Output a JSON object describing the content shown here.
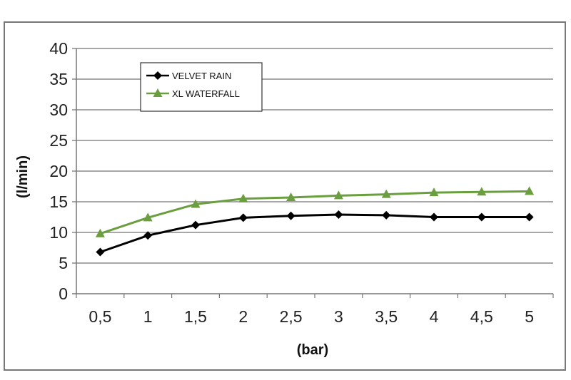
{
  "chart_data": {
    "type": "line",
    "title": "",
    "xlabel": "(bar)",
    "ylabel": "(l/min)",
    "categories": [
      "0,5",
      "1",
      "1,5",
      "2",
      "2,5",
      "3",
      "3,5",
      "4",
      "4,5",
      "5"
    ],
    "y_ticks": [
      "0",
      "5",
      "10",
      "15",
      "20",
      "25",
      "30",
      "35",
      "40"
    ],
    "ylim": [
      0,
      40
    ],
    "grid": "horizontal",
    "legend_position": "top-left",
    "series": [
      {
        "name": "VELVET RAIN",
        "color": "#000000",
        "marker": "diamond",
        "values": [
          6.8,
          9.5,
          11.2,
          12.4,
          12.7,
          12.9,
          12.8,
          12.5,
          12.5,
          12.5
        ]
      },
      {
        "name": "XL WATERFALL",
        "color": "#6a9e3f",
        "marker": "triangle",
        "values": [
          9.8,
          12.4,
          14.6,
          15.5,
          15.7,
          16.0,
          16.2,
          16.5,
          16.6,
          16.7
        ]
      }
    ]
  }
}
